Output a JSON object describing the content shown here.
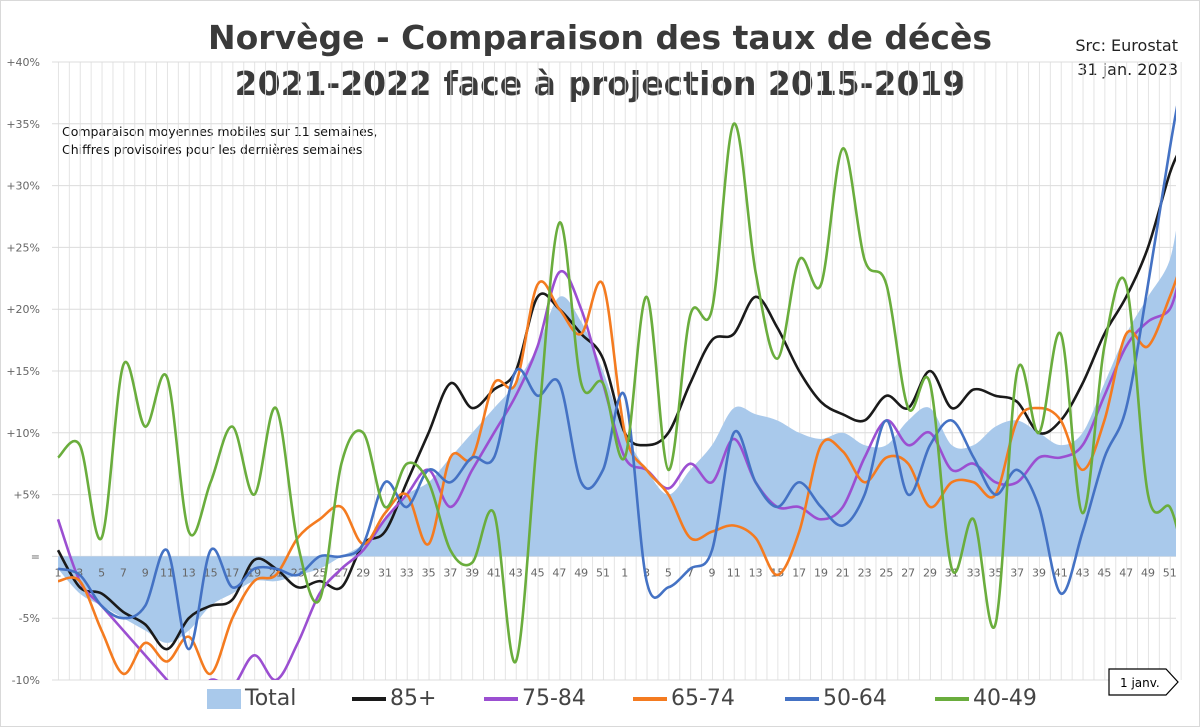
{
  "chart_data": {
    "type": "line",
    "title": "Norvège - Comparaison des taux de décès",
    "subtitle": "2021-2022 face à projection 2015-2019",
    "source": "Src: Eurostat",
    "date": "31 jan. 2023",
    "annotation_lines": [
      "Comparaison moyennes mobiles sur 11 semaines,",
      "Chiffres provisoires pour les dernières semaines"
    ],
    "year_marker": "1 janv.",
    "ylim": [
      -10,
      40
    ],
    "yticks": [
      -10,
      -5,
      0,
      5,
      10,
      15,
      20,
      25,
      30,
      35,
      40
    ],
    "ytick_labels": [
      "-10%",
      "-5%",
      "=",
      "+5%",
      "+10%",
      "+15%",
      "+20%",
      "+25%",
      "+30%",
      "+35%",
      "+40%"
    ],
    "xtick_labels": [
      "1",
      "3",
      "5",
      "7",
      "9",
      "11",
      "13",
      "15",
      "17",
      "19",
      "21",
      "23",
      "25",
      "27",
      "29",
      "31",
      "33",
      "35",
      "37",
      "39",
      "41",
      "43",
      "45",
      "47",
      "49",
      "51",
      "1",
      "3",
      "5",
      "7",
      "9",
      "11",
      "13",
      "15",
      "17",
      "19",
      "21",
      "23",
      "25",
      "27",
      "29",
      "31",
      "33",
      "35",
      "37",
      "39",
      "41",
      "43",
      "45",
      "47",
      "49",
      "51"
    ],
    "grid": true,
    "legend_position": "bottom",
    "x": [
      "2021-W01",
      "2021-W03",
      "2021-W05",
      "2021-W07",
      "2021-W09",
      "2021-W11",
      "2021-W13",
      "2021-W15",
      "2021-W17",
      "2021-W19",
      "2021-W21",
      "2021-W23",
      "2021-W25",
      "2021-W27",
      "2021-W29",
      "2021-W31",
      "2021-W33",
      "2021-W35",
      "2021-W37",
      "2021-W39",
      "2021-W41",
      "2021-W43",
      "2021-W45",
      "2021-W47",
      "2021-W49",
      "2021-W51",
      "2022-W01",
      "2022-W03",
      "2022-W05",
      "2022-W07",
      "2022-W09",
      "2022-W11",
      "2022-W13",
      "2022-W15",
      "2022-W17",
      "2022-W19",
      "2022-W21",
      "2022-W23",
      "2022-W25",
      "2022-W27",
      "2022-W29",
      "2022-W31",
      "2022-W33",
      "2022-W35",
      "2022-W37",
      "2022-W39",
      "2022-W41",
      "2022-W43",
      "2022-W45",
      "2022-W47",
      "2022-W49",
      "2022-W51",
      "2022-W52"
    ],
    "series": [
      {
        "name": "Total",
        "kind": "area",
        "color": "#a9c9eb",
        "values": [
          -1,
          -3,
          -4,
          -5,
          -6,
          -7,
          -6,
          -4,
          -3,
          -2,
          -2,
          -1.5,
          -1,
          0,
          1,
          3,
          5,
          6,
          8,
          10,
          12,
          14,
          17,
          21,
          19,
          15,
          10,
          7,
          5,
          7,
          9,
          12,
          11.5,
          11,
          10,
          9.5,
          10,
          9,
          9,
          11,
          12,
          9,
          9,
          10.5,
          11,
          10,
          9,
          10,
          14,
          18,
          21,
          24,
          29
        ]
      },
      {
        "name": "85+",
        "kind": "line",
        "color": "#1a1a1a",
        "values": [
          0.5,
          -2.5,
          -3,
          -4.5,
          -5.5,
          -7.5,
          -5,
          -4,
          -3.5,
          -0.3,
          -1,
          -2.5,
          -2,
          -2.5,
          1,
          2,
          6,
          10,
          14,
          12,
          13.5,
          15,
          21,
          20,
          18,
          16,
          10,
          9,
          10,
          14,
          17.5,
          18,
          21,
          18.5,
          15,
          12.5,
          11.5,
          11,
          13,
          12,
          15,
          12,
          13.5,
          13,
          12.5,
          10,
          11,
          14,
          18,
          21,
          25,
          31,
          33
        ]
      },
      {
        "name": "75-84",
        "kind": "line",
        "color": "#9b4fd1",
        "values": [
          3,
          -2,
          -4,
          -6,
          -8,
          -10,
          -12,
          -10,
          -10.5,
          -8,
          -10,
          -7,
          -3,
          -1,
          0.5,
          3,
          5,
          7,
          4,
          7,
          10,
          13,
          17,
          23,
          20,
          14,
          8,
          7,
          5.5,
          7.5,
          6,
          9.5,
          6,
          4,
          4,
          3,
          4,
          8,
          11,
          9,
          10,
          7,
          7.5,
          6,
          6,
          8,
          8,
          9,
          13,
          17,
          19,
          20,
          23
        ]
      },
      {
        "name": "65-74",
        "kind": "line",
        "color": "#f47b20",
        "values": [
          -2,
          -2,
          -6,
          -9.5,
          -7,
          -8.5,
          -6.5,
          -9.5,
          -5,
          -2,
          -1.5,
          1.5,
          3,
          4,
          1,
          3.5,
          5,
          1,
          8,
          8,
          14,
          14,
          22,
          20,
          18,
          22,
          10,
          7,
          5,
          1.5,
          2,
          2.5,
          1.5,
          -1.5,
          2,
          9,
          8.5,
          6,
          8,
          7.5,
          4,
          6,
          6,
          5,
          11,
          12,
          11,
          7,
          11,
          18,
          17,
          21,
          23.5
        ]
      },
      {
        "name": "50-64",
        "kind": "line",
        "color": "#4472c4",
        "values": [
          -1,
          -1.5,
          -4,
          -5,
          -4,
          0.5,
          -7.5,
          0.5,
          -2.5,
          -1,
          -1,
          -1.5,
          0,
          0,
          1,
          6,
          4,
          7,
          6,
          8,
          8,
          15,
          13,
          14,
          6,
          7,
          13,
          -2,
          -2.5,
          -1,
          0.5,
          10,
          6,
          4,
          6,
          4,
          2.5,
          5,
          11,
          5,
          9,
          11,
          8,
          5,
          7,
          4,
          -3,
          2,
          8,
          12,
          22,
          33,
          38
        ]
      },
      {
        "name": "40-49",
        "kind": "line",
        "color": "#6aad3d",
        "values": [
          8,
          9,
          1.5,
          15.5,
          10.5,
          14.5,
          2,
          6,
          10.5,
          5,
          12,
          1,
          -3.5,
          7.5,
          10,
          4,
          7.5,
          6,
          0.5,
          -0.5,
          3.5,
          -8.5,
          10,
          27,
          14,
          14,
          8,
          21,
          7,
          19.5,
          20,
          35,
          23,
          16,
          24,
          22,
          33,
          24,
          22,
          12,
          14,
          -1,
          3,
          -5.5,
          15,
          10,
          18,
          3.5,
          17,
          22,
          5,
          4,
          1
        ]
      }
    ]
  }
}
